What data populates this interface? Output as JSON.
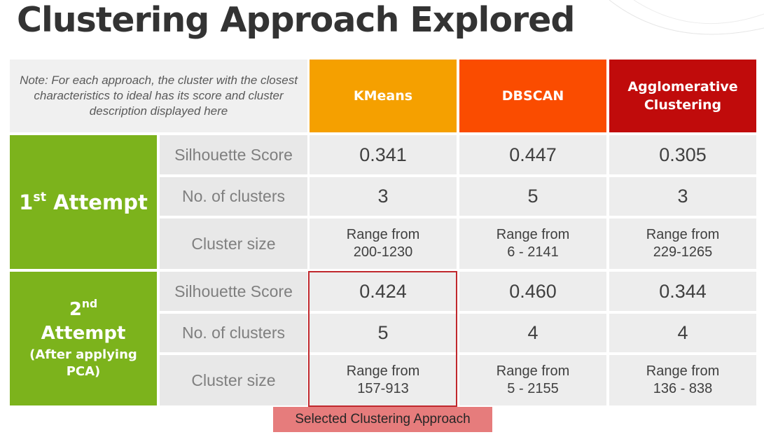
{
  "title": "Clustering Approach Explored",
  "note": "Note: For each approach, the cluster with the closest characteristics to ideal has its score and cluster description displayed here",
  "columns": [
    "KMeans",
    "DBSCAN",
    "Agglomerative Clustering"
  ],
  "attempts": [
    {
      "label_num": "1",
      "label_sup": "st",
      "label_word": "Attempt",
      "label_note": "",
      "rows": [
        {
          "metric": "Silhouette Score",
          "values": [
            "0.341",
            "0.447",
            "0.305"
          ]
        },
        {
          "metric": "No. of clusters",
          "values": [
            "3",
            "5",
            "3"
          ]
        },
        {
          "metric": "Cluster size",
          "values": [
            [
              "Range from",
              "200-1230"
            ],
            [
              "Range from",
              "6 - 2141"
            ],
            [
              "Range from",
              "229-1265"
            ]
          ]
        }
      ]
    },
    {
      "label_num": "2",
      "label_sup": "nd",
      "label_word": "Attempt",
      "label_note": "(After applying PCA)",
      "rows": [
        {
          "metric": "Silhouette Score",
          "values": [
            "0.424",
            "0.460",
            "0.344"
          ]
        },
        {
          "metric": "No. of clusters",
          "values": [
            "5",
            "4",
            "4"
          ]
        },
        {
          "metric": "Cluster size",
          "values": [
            [
              "Range from",
              "157-913"
            ],
            [
              "Range from",
              "5 - 2155"
            ],
            [
              "Range from",
              "136 - 838"
            ]
          ]
        }
      ]
    }
  ],
  "selected_label": "Selected Clustering Approach",
  "colors": {
    "kmeans": "#f5a000",
    "dbscan": "#fa4c00",
    "agglomerative": "#c00b0b",
    "attempt": "#7cb31c",
    "selection_border": "#c0282d",
    "selection_label_bg": "#e67c7c"
  }
}
